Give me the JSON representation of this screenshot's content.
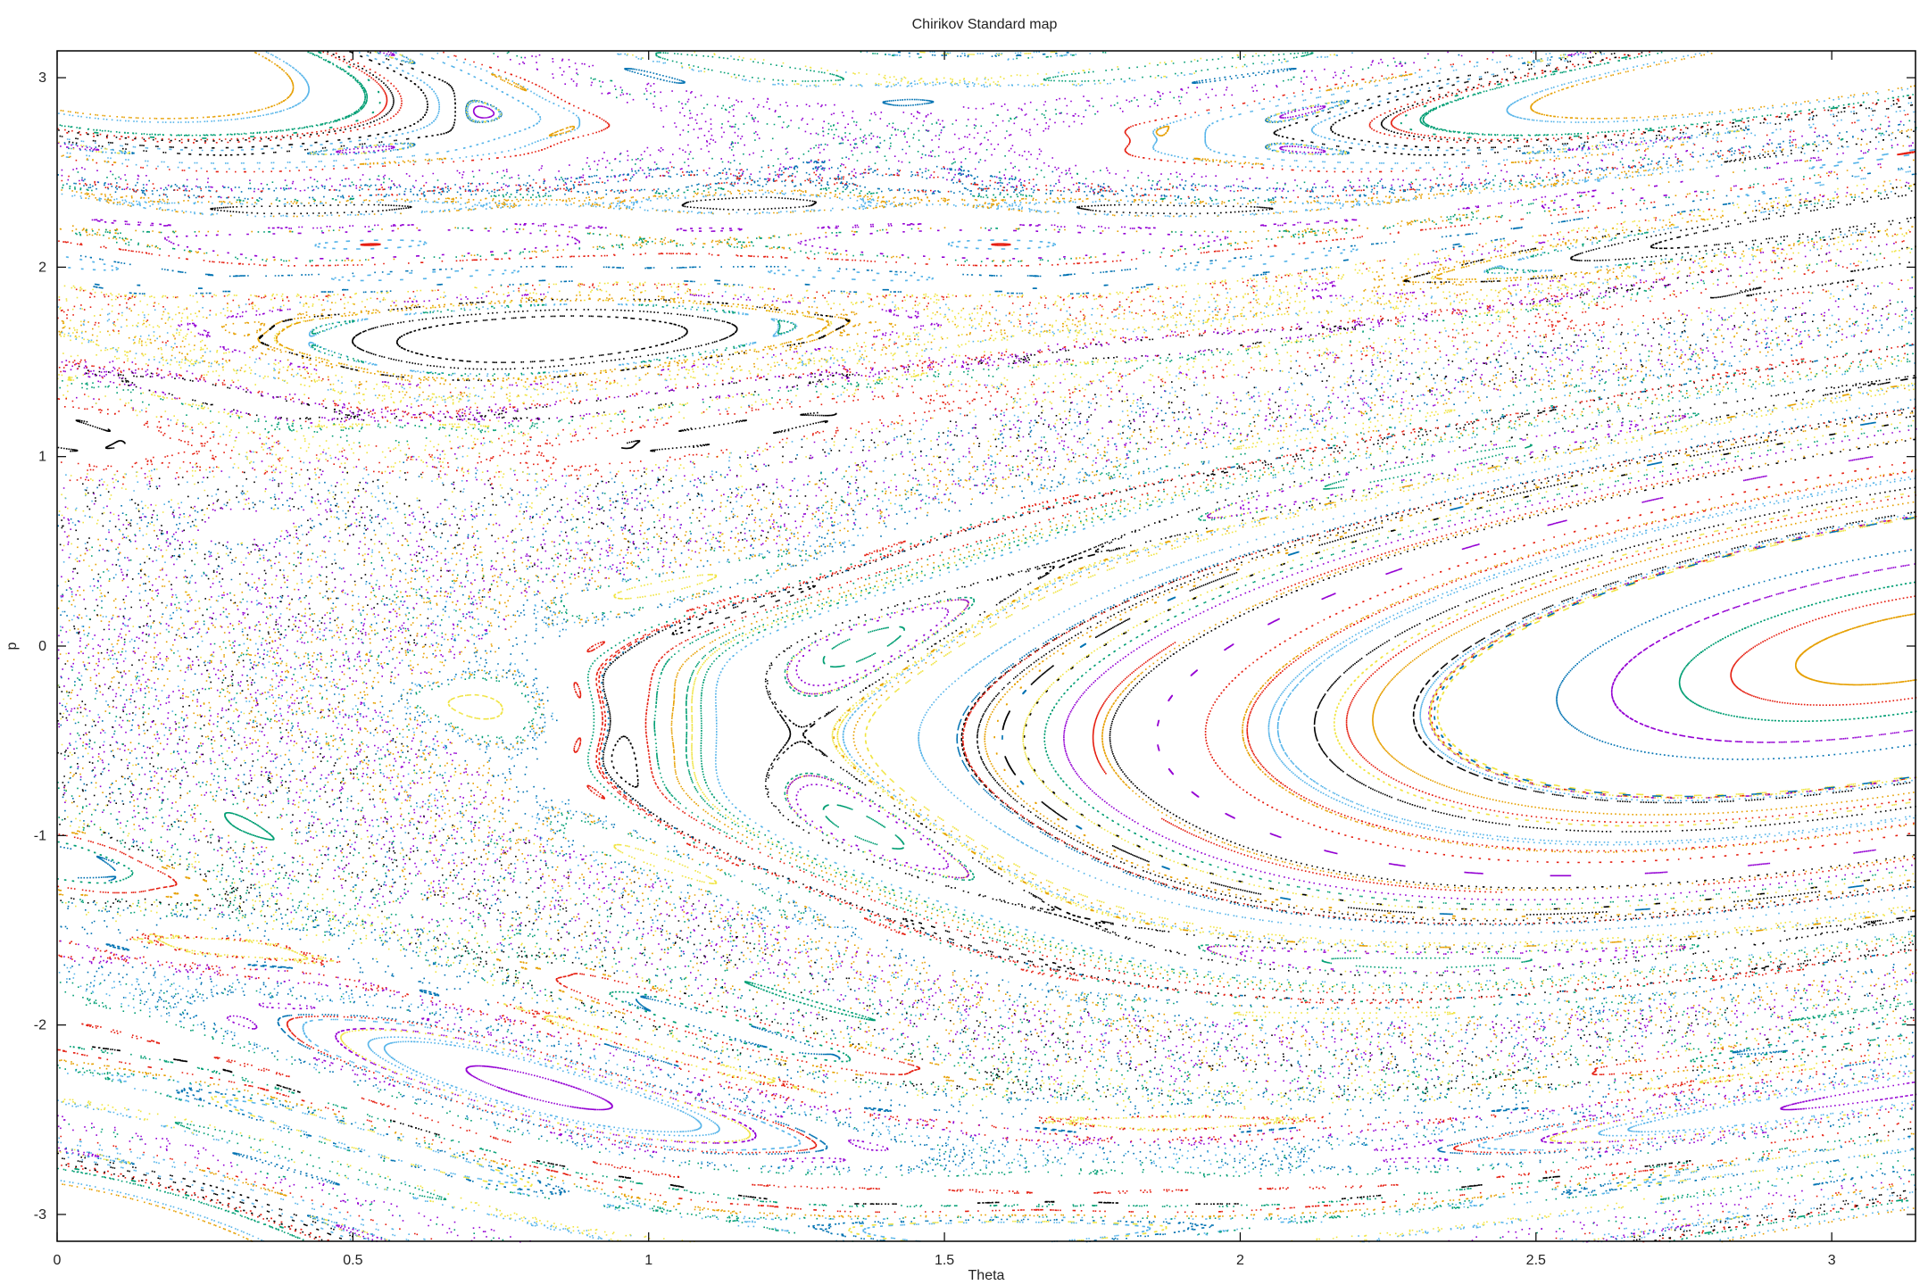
{
  "chart_data": {
    "type": "scatter",
    "title": "Chirikov Standard map",
    "xlabel": "Theta",
    "ylabel": "p",
    "xlim": [
      0,
      3.14159
    ],
    "ylim": [
      -3.14159,
      3.14159
    ],
    "x_ticks": [
      0,
      0.5,
      1,
      1.5,
      2,
      2.5,
      3
    ],
    "x_tick_labels": [
      "0",
      "0.5",
      "1",
      "1.5",
      "2",
      "2.5",
      "3"
    ],
    "y_ticks": [
      -3,
      -2,
      -1,
      0,
      1,
      2,
      3
    ],
    "y_tick_labels": [
      "-3",
      "-2",
      "-1",
      "0",
      "1",
      "2",
      "3"
    ],
    "grid": false,
    "legend": "none",
    "series_colors": [
      "#9400d3",
      "#009e73",
      "#56b4e9",
      "#e69f00",
      "#f0e442",
      "#0072b2",
      "#e51e10",
      "#000000"
    ]
  }
}
